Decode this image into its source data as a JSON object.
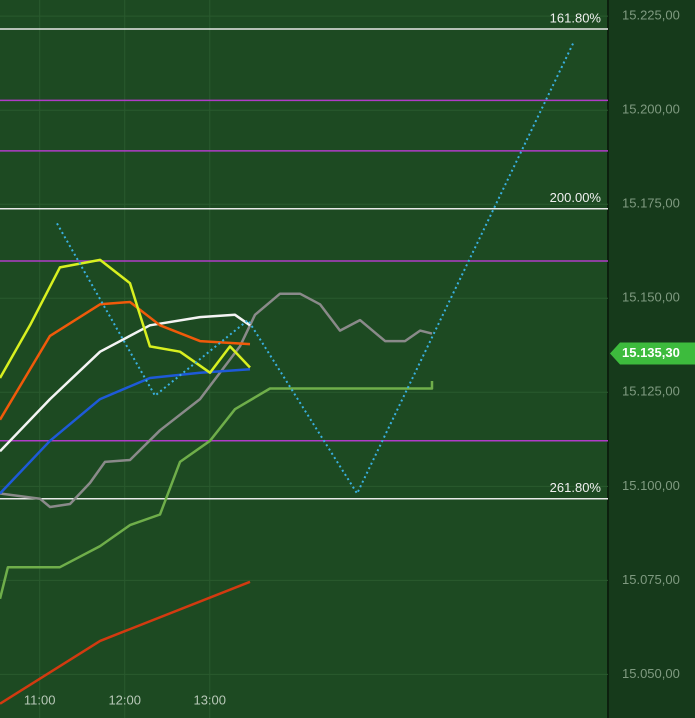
{
  "chart_data": {
    "type": "line",
    "xlim": [
      632,
      1061
    ],
    "ylim": [
      15.0384,
      15.2293
    ],
    "xticks": [
      {
        "value": 660,
        "label": "11:00"
      },
      {
        "value": 720,
        "label": "12:00"
      },
      {
        "value": 780,
        "label": "13:00"
      }
    ],
    "yticks": [
      {
        "value": 15.225,
        "label": "15.225,00"
      },
      {
        "value": 15.2,
        "label": "15.200,00"
      },
      {
        "value": 15.175,
        "label": "15.175,00"
      },
      {
        "value": 15.15,
        "label": "15.150,00"
      },
      {
        "value": 15.125,
        "label": "15.125,00"
      },
      {
        "value": 15.1,
        "label": "15.100,00"
      },
      {
        "value": 15.075,
        "label": "15.075,00"
      },
      {
        "value": 15.05,
        "label": "15.050,00"
      }
    ],
    "grid": true,
    "levels": [
      {
        "value": 15.2216,
        "label": "161.80%",
        "color": "#e8e8e8"
      },
      {
        "value": 15.2026,
        "color": "#b03cc8"
      },
      {
        "value": 15.1892,
        "color": "#b03cc8"
      },
      {
        "value": 15.1738,
        "label": "200.00%",
        "color": "#e8e8e8"
      },
      {
        "value": 15.1599,
        "color": "#b03cc8"
      },
      {
        "value": 15.1121,
        "color": "#b03cc8"
      },
      {
        "value": 15.0967,
        "label": "261.80%",
        "color": "#e8e8e8"
      }
    ],
    "last_price": {
      "value": 15.1353,
      "label": "15.135,30",
      "color": "#3dbb3d"
    },
    "series": [
      {
        "color": "#8a8a8a",
        "x": [
          632,
          660.2,
          667.3,
          681.4,
          695.5,
          706.1,
          723.7,
          744.9,
          773.1,
          801.3,
          811.9,
          829.6,
          843.7,
          857.8,
          871.9,
          886,
          903.7,
          917.8,
          928.4,
          936.8
        ],
        "values": [
          15.0981,
          15.0967,
          15.0945,
          15.0953,
          15.1009,
          15.1065,
          15.107,
          15.1149,
          15.1232,
          15.1372,
          15.1456,
          15.1512,
          15.1512,
          15.1484,
          15.1414,
          15.1442,
          15.1386,
          15.1386,
          15.1414,
          15.1406
        ]
      },
      {
        "color": "#6fae4a",
        "x": [
          632,
          637.6,
          674.3,
          702.6,
          723.7,
          744.9,
          759,
          780.2,
          797.8,
          822.5,
          843.7,
          936.8,
          936.8
        ],
        "values": [
          15.0701,
          15.0785,
          15.0785,
          15.0841,
          15.0897,
          15.0925,
          15.1065,
          15.1121,
          15.1205,
          15.126,
          15.126,
          15.126,
          15.128
        ]
      },
      {
        "color": "#d23a10",
        "x": [
          632,
          702.6,
          808.4
        ],
        "values": [
          15.0422,
          15.0589,
          15.0746
        ]
      },
      {
        "color": "#1e5ad8",
        "x": [
          632,
          667.3,
          702.6,
          737.8,
          773.1,
          808.4
        ],
        "values": [
          15.0981,
          15.1121,
          15.1232,
          15.1288,
          15.1302,
          15.1311
        ]
      },
      {
        "color": "#f4f4f4",
        "x": [
          632,
          667.3,
          702.6,
          737.8,
          773.1,
          797.8,
          808.4
        ],
        "values": [
          15.1093,
          15.1232,
          15.1358,
          15.1428,
          15.145,
          15.1456,
          15.1428
        ]
      },
      {
        "color": "#f05a0a",
        "x": [
          632,
          667.3,
          702.6,
          723.7,
          744.9,
          773.1,
          808.4
        ],
        "values": [
          15.1177,
          15.14,
          15.1484,
          15.149,
          15.1428,
          15.1386,
          15.1378
        ]
      },
      {
        "color": "#d8f020",
        "x": [
          632,
          653.2,
          674.3,
          702.6,
          723.7,
          737.8,
          759,
          780.2,
          794.3,
          808.4
        ],
        "values": [
          15.1288,
          15.1428,
          15.1582,
          15.1602,
          15.154,
          15.1372,
          15.1358,
          15.1302,
          15.1372,
          15.1316
        ]
      },
      {
        "color": "#3ab0e0",
        "dotted": true,
        "x": [
          672.2,
          741.4,
          807,
          884,
          1036.3
        ],
        "values": [
          15.1699,
          15.1241,
          15.1442,
          15.0981,
          15.2177
        ]
      }
    ]
  }
}
